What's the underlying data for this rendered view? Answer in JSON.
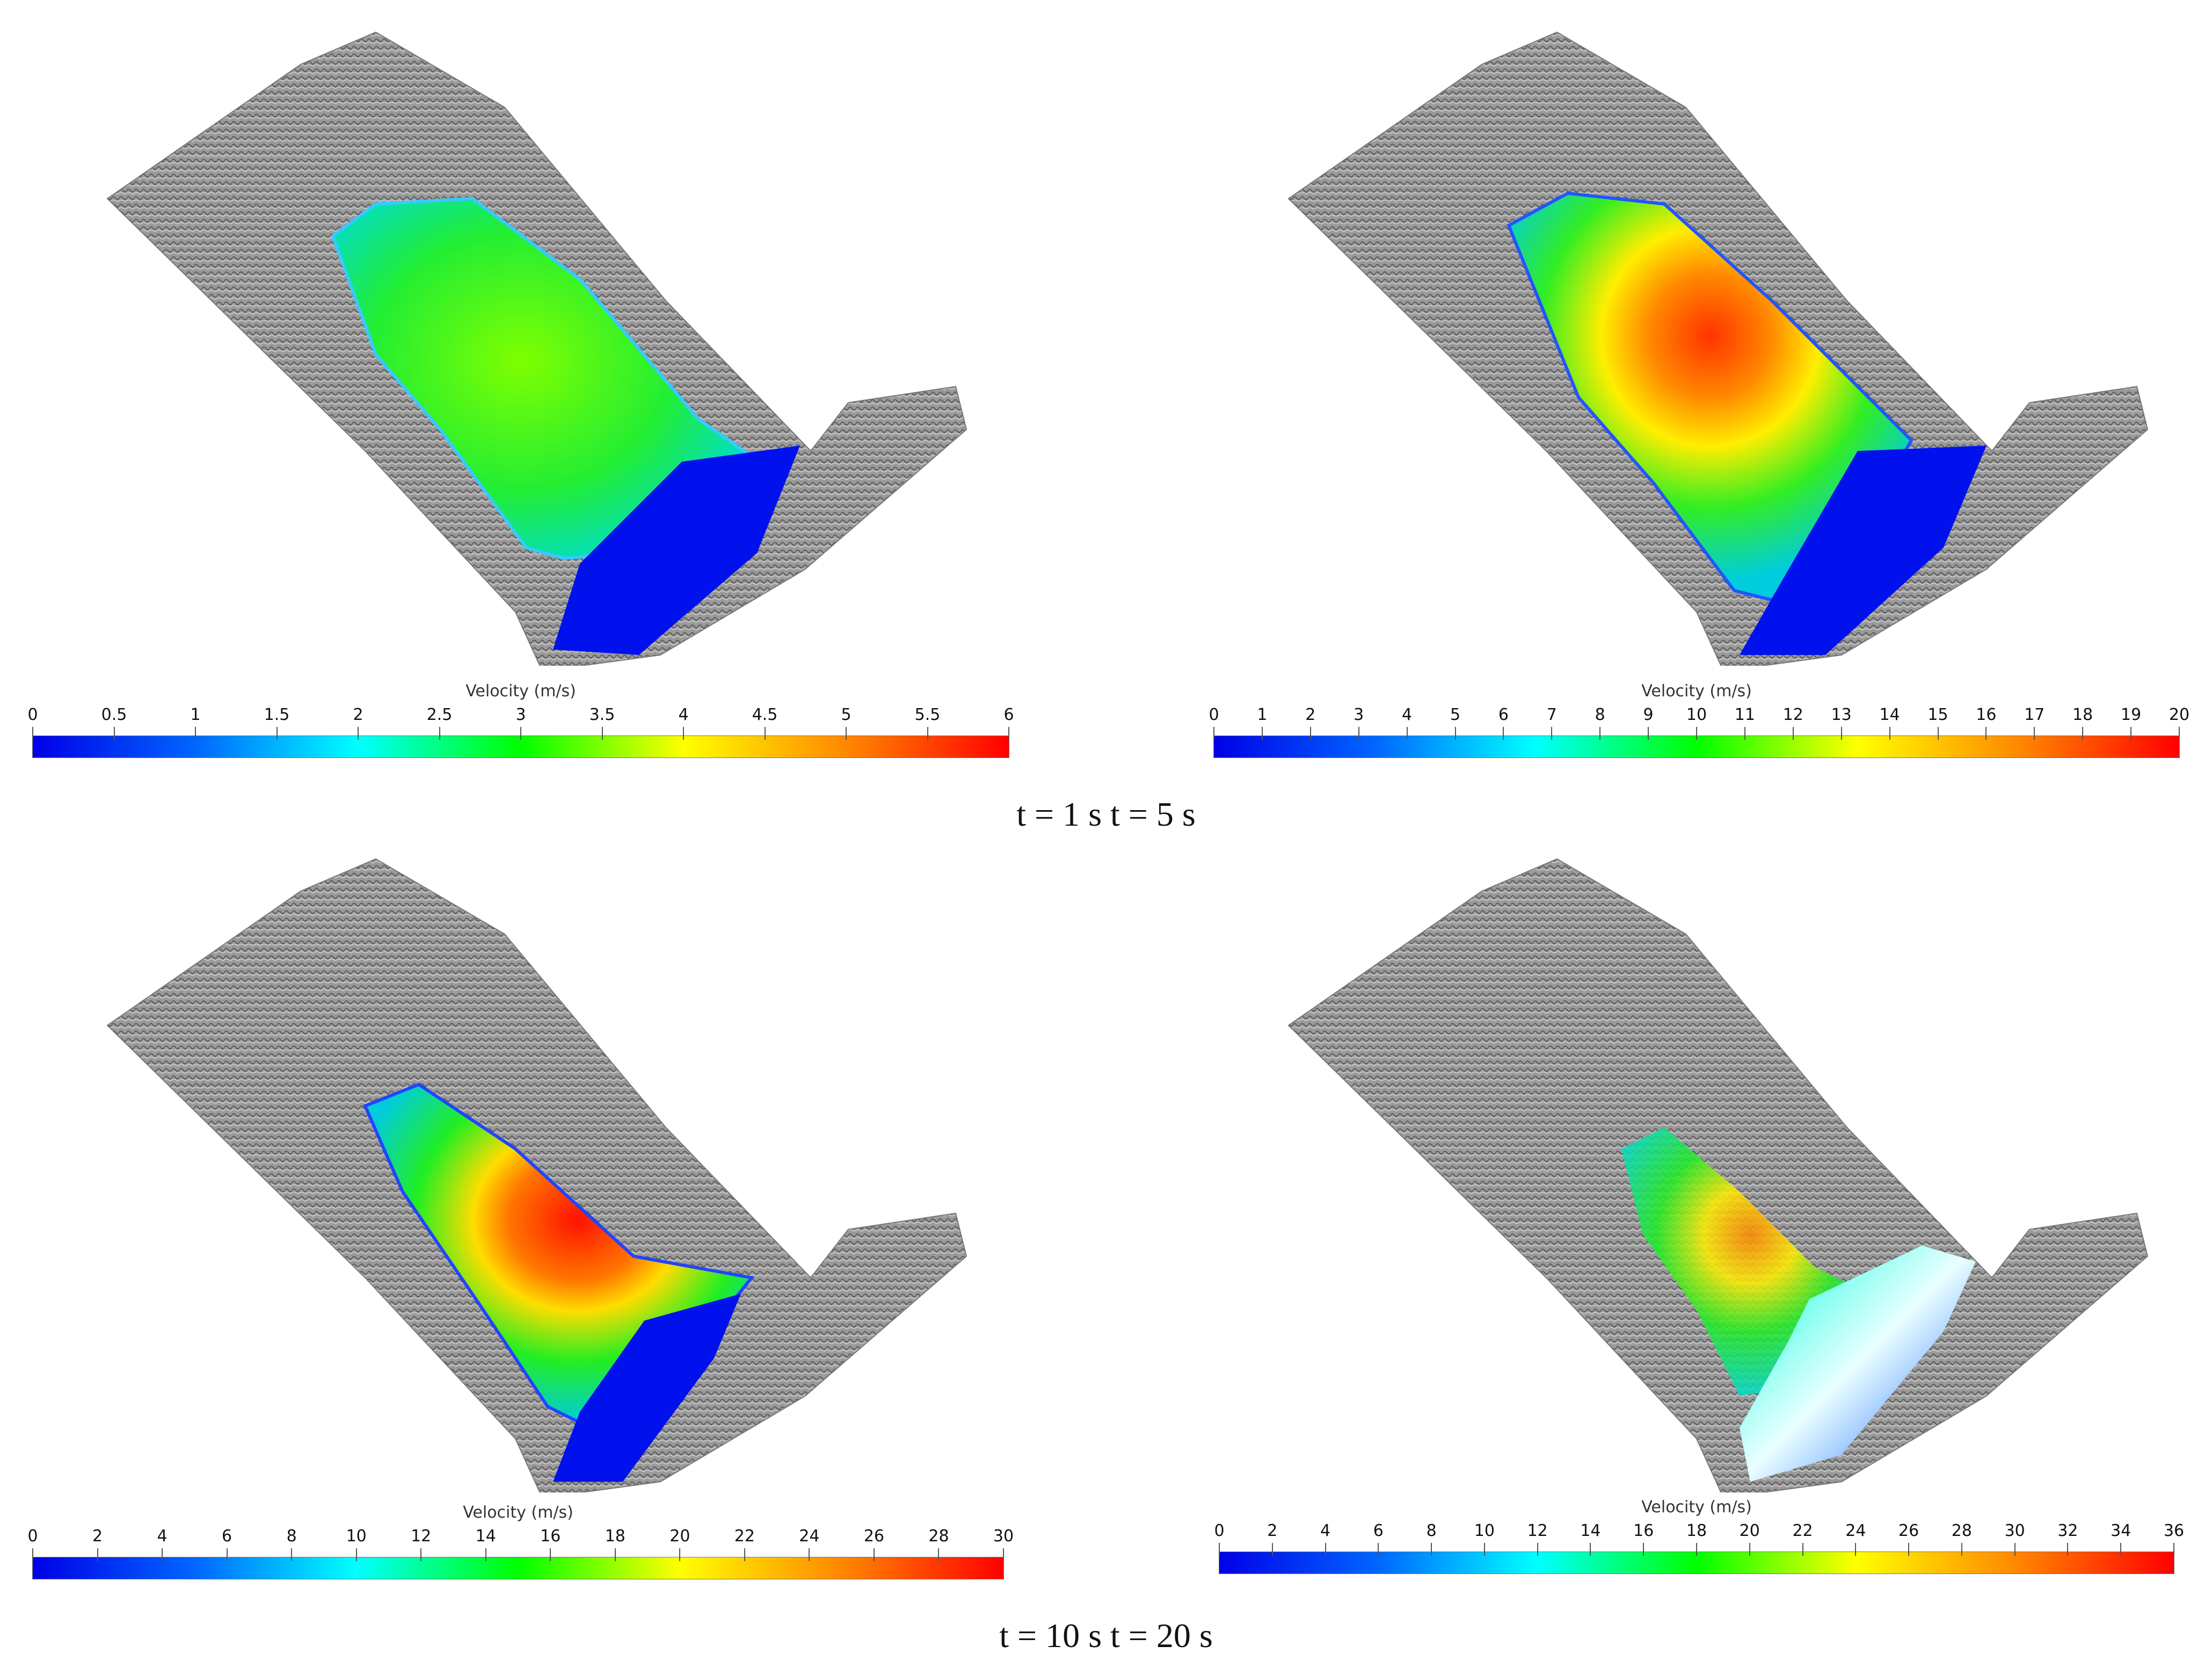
{
  "panels": [
    {
      "id": "t1",
      "colorbar": {
        "title": "Velocity (m/s)",
        "ticks": [
          "0",
          "0.5",
          "1",
          "1.5",
          "2",
          "2.5",
          "3",
          "3.5",
          "4",
          "4.5",
          "5",
          "5.5",
          "6"
        ],
        "min": 0,
        "max": 6
      },
      "peak_level": 0.45
    },
    {
      "id": "t5",
      "colorbar": {
        "title": "Velocity (m/s)",
        "ticks": [
          "0",
          "1",
          "2",
          "3",
          "4",
          "5",
          "6",
          "7",
          "8",
          "9",
          "10",
          "11",
          "12",
          "13",
          "14",
          "15",
          "16",
          "17",
          "18",
          "19",
          "20"
        ],
        "min": 0,
        "max": 20
      },
      "peak_level": 0.8
    },
    {
      "id": "t10",
      "colorbar": {
        "title": "Velocity (m/s)",
        "ticks": [
          "0",
          "2",
          "4",
          "6",
          "8",
          "10",
          "12",
          "14",
          "16",
          "18",
          "20",
          "22",
          "24",
          "26",
          "28",
          "30"
        ],
        "min": 0,
        "max": 30
      },
      "peak_level": 0.95
    },
    {
      "id": "t20",
      "colorbar": {
        "title": "Velocity (m/s)",
        "ticks": [
          "0",
          "2",
          "4",
          "6",
          "8",
          "10",
          "12",
          "14",
          "16",
          "18",
          "20",
          "22",
          "24",
          "26",
          "28",
          "30",
          "32",
          "34",
          "36"
        ],
        "min": 0,
        "max": 36
      },
      "peak_level": 0.75
    }
  ],
  "captions": {
    "top": "t = 1 s t = 5 s",
    "bottom": "t = 10 s t = 20 s"
  },
  "colormap": [
    "#0000e6",
    "#0066ff",
    "#00ffff",
    "#00ff00",
    "#ffff00",
    "#ff8800",
    "#ff0000"
  ],
  "terrain_color": "#8c8c8c"
}
